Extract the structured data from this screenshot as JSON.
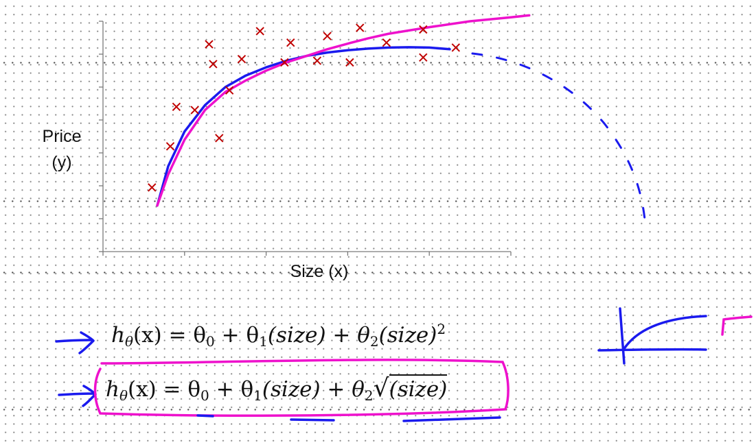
{
  "chart_data": {
    "type": "scatter",
    "title": "",
    "xlabel": "Size (x)",
    "ylabel_line1": "Price",
    "ylabel_line2": "(y)",
    "xlim": [
      0,
      10
    ],
    "ylim": [
      0,
      7
    ],
    "points": [
      {
        "x": 1.2,
        "y": 1.95
      },
      {
        "x": 1.65,
        "y": 3.2
      },
      {
        "x": 1.8,
        "y": 4.4
      },
      {
        "x": 2.25,
        "y": 4.3
      },
      {
        "x": 2.6,
        "y": 6.3
      },
      {
        "x": 2.7,
        "y": 5.7
      },
      {
        "x": 2.85,
        "y": 3.45
      },
      {
        "x": 3.1,
        "y": 4.9
      },
      {
        "x": 3.4,
        "y": 5.85
      },
      {
        "x": 3.85,
        "y": 6.7
      },
      {
        "x": 4.45,
        "y": 5.75
      },
      {
        "x": 4.6,
        "y": 6.35
      },
      {
        "x": 5.25,
        "y": 5.8
      },
      {
        "x": 5.5,
        "y": 6.55
      },
      {
        "x": 6.05,
        "y": 5.75
      },
      {
        "x": 6.3,
        "y": 6.8
      },
      {
        "x": 6.95,
        "y": 6.35
      },
      {
        "x": 7.85,
        "y": 5.9
      },
      {
        "x": 7.85,
        "y": 6.75
      },
      {
        "x": 8.65,
        "y": 6.2
      }
    ],
    "series": [
      {
        "color": "#1a1aee",
        "style": "quadratic-fit",
        "x": [
          1.33,
          1.6,
          2.0,
          2.5,
          3.0,
          3.5,
          4.0,
          4.5,
          5.0,
          5.5,
          6.0,
          6.5,
          7.0,
          7.5,
          8.0,
          8.5
        ],
        "y": [
          1.4,
          2.6,
          3.65,
          4.45,
          5.0,
          5.35,
          5.6,
          5.8,
          5.95,
          6.05,
          6.12,
          6.17,
          6.2,
          6.21,
          6.2,
          6.15
        ]
      },
      {
        "color": "#ee11cc",
        "style": "sqrt-fit",
        "x": [
          1.33,
          1.6,
          2.0,
          2.5,
          3.0,
          3.5,
          4.0,
          4.5,
          5.0,
          5.5,
          6.0,
          6.5,
          7.0,
          8.0,
          9.0,
          10.0,
          10.45
        ],
        "y": [
          1.4,
          2.35,
          3.4,
          4.3,
          4.85,
          5.2,
          5.5,
          5.75,
          5.95,
          6.15,
          6.32,
          6.48,
          6.62,
          6.82,
          7.0,
          7.12,
          7.18
        ]
      }
    ]
  },
  "formulas": {
    "f1": {
      "h": "h",
      "theta_sub": "θ",
      "lhs_args": "(x) = θ",
      "t0": "0",
      "mid": " + θ",
      "t1": "1",
      "size_term": "(size) + θ",
      "t2": "2",
      "last": "(size)",
      "exp": "2"
    },
    "f2": {
      "h": "h",
      "theta_sub": "θ",
      "lhs_args": "(x) = θ",
      "t0": "0",
      "mid": " + θ",
      "t1": "1",
      "size_term": "(size) + θ",
      "t2": "2",
      "radical": "√",
      "sqrt_arg": "(size)"
    }
  },
  "colors": {
    "marker": "#c00000",
    "axis": "#7a7a7a",
    "ink_blue": "#1a1aee",
    "ink_magenta": "#ee11cc"
  }
}
